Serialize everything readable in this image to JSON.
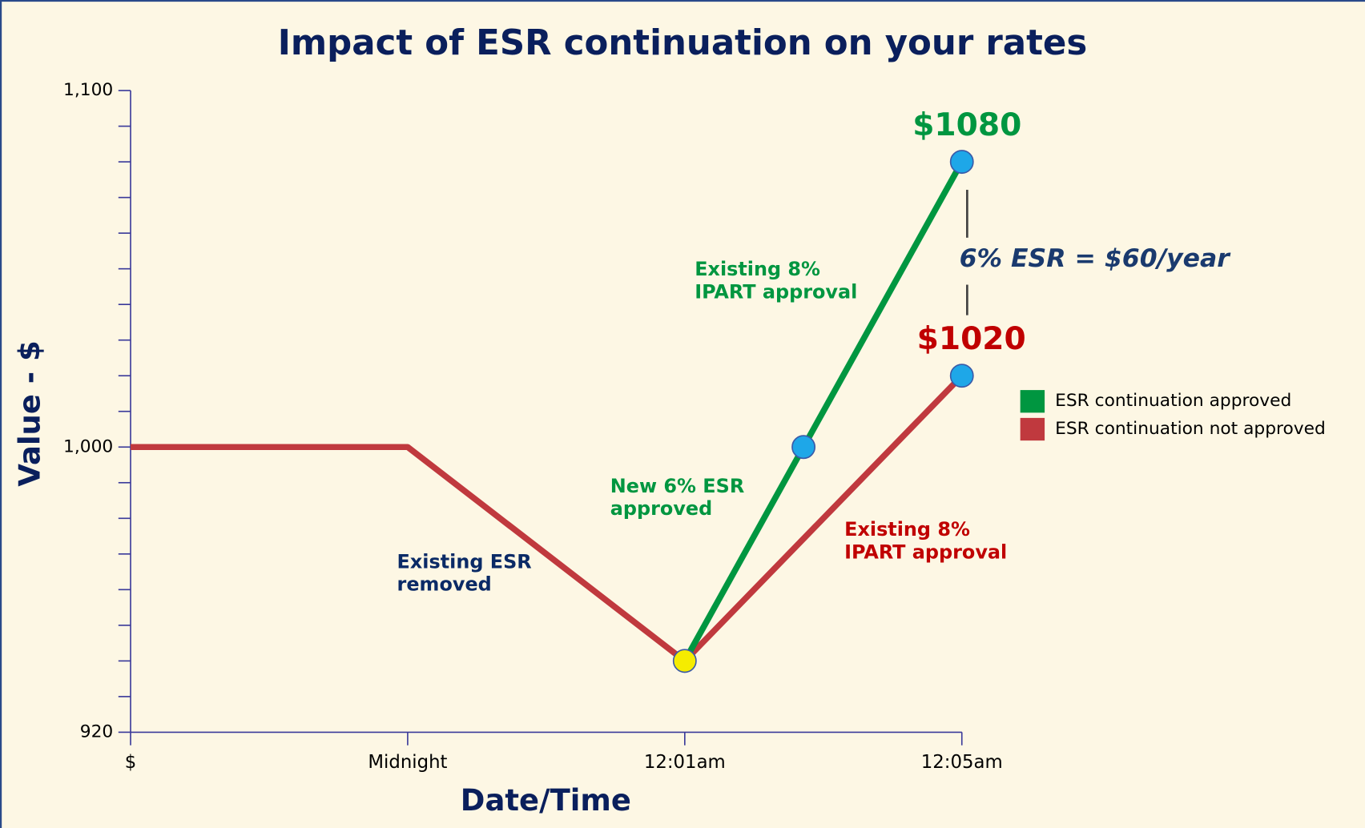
{
  "chart_data": {
    "type": "line",
    "title": "Impact of ESR continuation on your rates",
    "x_label": "Date/Time",
    "y_label": "Value - $",
    "categories": [
      "$",
      "Midnight",
      "12:01am",
      "12:05am"
    ],
    "ylim": [
      920,
      1100
    ],
    "yticks": [
      920,
      {
        "value": 1000,
        "label": "1,000"
      },
      {
        "value": 1100,
        "label": "1,100"
      }
    ],
    "yticks_minor": [
      930,
      940,
      950,
      960,
      970,
      980,
      990,
      1010,
      1020,
      1030,
      1040,
      1050,
      1060,
      1070,
      1080,
      1090
    ],
    "series": [
      {
        "name": "ESR continuation approved",
        "color": "#009640",
        "values": [
          null,
          null,
          940,
          1080
        ],
        "value_labels": [
          null,
          null,
          null,
          "$1080"
        ],
        "marker_colors": [
          null,
          null,
          null,
          "#1ea7e8"
        ],
        "extra_marker": {
          "value": 1000,
          "color": "#1ea7e8"
        }
      },
      {
        "name": "ESR continuation not approved",
        "color": "#c0393e",
        "values": [
          1000,
          1000,
          940,
          1020
        ],
        "value_labels": [
          null,
          null,
          null,
          "$1020"
        ],
        "marker_colors": [
          null,
          null,
          "#f5ec00",
          "#1ea7e8"
        ]
      }
    ],
    "annotations": [
      {
        "lines": [
          "Existing 8%",
          "IPART approval"
        ],
        "color": "#009640"
      },
      {
        "lines": [
          "New 6% ESR",
          "approved"
        ],
        "color": "#009640"
      },
      {
        "lines": [
          "Existing ESR",
          "removed"
        ],
        "color": "#0a2a66"
      },
      {
        "lines": [
          "Existing 8%",
          "IPART approval"
        ],
        "color": "#c00000"
      },
      {
        "lines": [
          "6% ESR = $60/year"
        ],
        "color": "#1a3a6e"
      }
    ],
    "legend": "right"
  }
}
